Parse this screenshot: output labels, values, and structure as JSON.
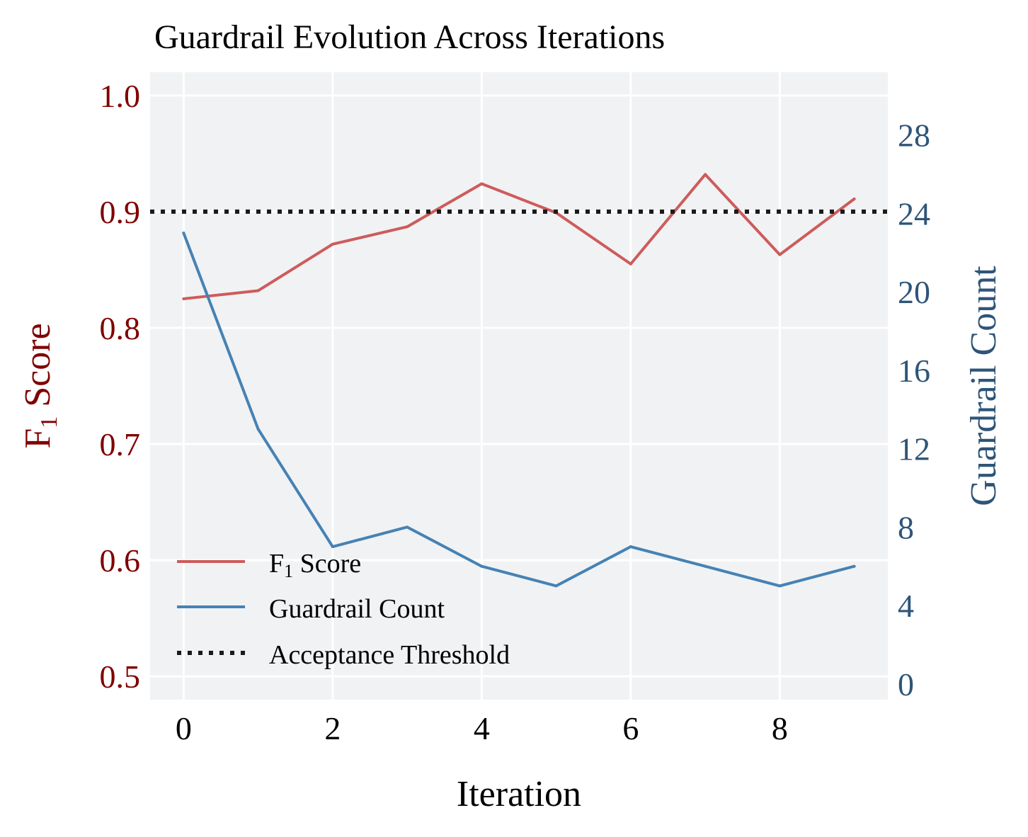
{
  "chart_data": {
    "type": "line",
    "title": "Guardrail Evolution Across Iterations",
    "xlabel": "Iteration",
    "ylabel_left_main": "F",
    "ylabel_left_sub": "1",
    "ylabel_left_rest": " Score",
    "ylabel_right": "Guardrail Count",
    "x": [
      0,
      1,
      2,
      3,
      4,
      5,
      6,
      7,
      8,
      9
    ],
    "xlim": [
      -0.45,
      9.45
    ],
    "xticks": [
      "0",
      "2",
      "4",
      "6",
      "8"
    ],
    "ylim_left": [
      0.48,
      1.02
    ],
    "yticks_left": [
      "0.5",
      "0.6",
      "0.7",
      "0.8",
      "0.9",
      "1.0"
    ],
    "ylim_right": [
      -0.8,
      31.2
    ],
    "yticks_right": [
      "0",
      "4",
      "8",
      "12",
      "16",
      "20",
      "24",
      "28"
    ],
    "grid": true,
    "legend_position": "lower-left",
    "series": [
      {
        "name": "F1 Score",
        "legend_main": "F",
        "legend_sub": "1",
        "legend_rest": " Score",
        "axis": "left",
        "color": "#cd5c5c",
        "style": "solid",
        "values": [
          0.825,
          0.832,
          0.872,
          0.887,
          0.924,
          0.899,
          0.855,
          0.932,
          0.863,
          0.911
        ]
      },
      {
        "name": "Guardrail Count",
        "legend_main": "Guardrail Count",
        "axis": "right",
        "color": "#4682b4",
        "style": "solid",
        "values": [
          23,
          13,
          7,
          8,
          6,
          5,
          7,
          6,
          5,
          6
        ]
      },
      {
        "name": "Acceptance Threshold",
        "legend_main": "Acceptance Threshold",
        "axis": "left",
        "color": "#1a1a1a",
        "style": "dotted",
        "value": 0.9
      }
    ],
    "colors": {
      "plot_background": "#f1f2f4",
      "grid": "#ffffff",
      "left_axis_text": "#800000",
      "right_axis_text": "#2e5578",
      "text": "#000000"
    }
  }
}
